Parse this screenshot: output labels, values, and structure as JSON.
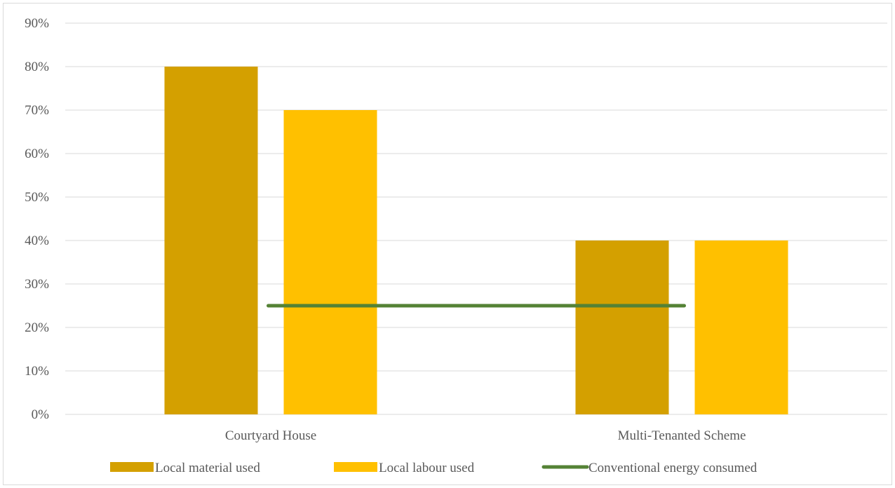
{
  "chart_data": {
    "type": "bar",
    "categories": [
      "Courtyard House",
      "Multi-Tenanted Scheme"
    ],
    "series": [
      {
        "name": "Local material used",
        "kind": "bar",
        "values": [
          0.8,
          0.4
        ],
        "color": "#d4a000"
      },
      {
        "name": "Local labour used",
        "kind": "bar",
        "values": [
          0.7,
          0.4
        ],
        "color": "#ffc000"
      },
      {
        "name": "Conventional energy consumed",
        "kind": "line",
        "values": [
          0.25,
          0.25
        ],
        "color": "#548235"
      }
    ],
    "yticks": [
      "0%",
      "10%",
      "20%",
      "30%",
      "40%",
      "50%",
      "60%",
      "70%",
      "80%",
      "90%"
    ],
    "ylim": [
      0,
      0.9
    ],
    "grid": true,
    "legend": "bottom",
    "title": "",
    "xlabel": "",
    "ylabel": ""
  }
}
